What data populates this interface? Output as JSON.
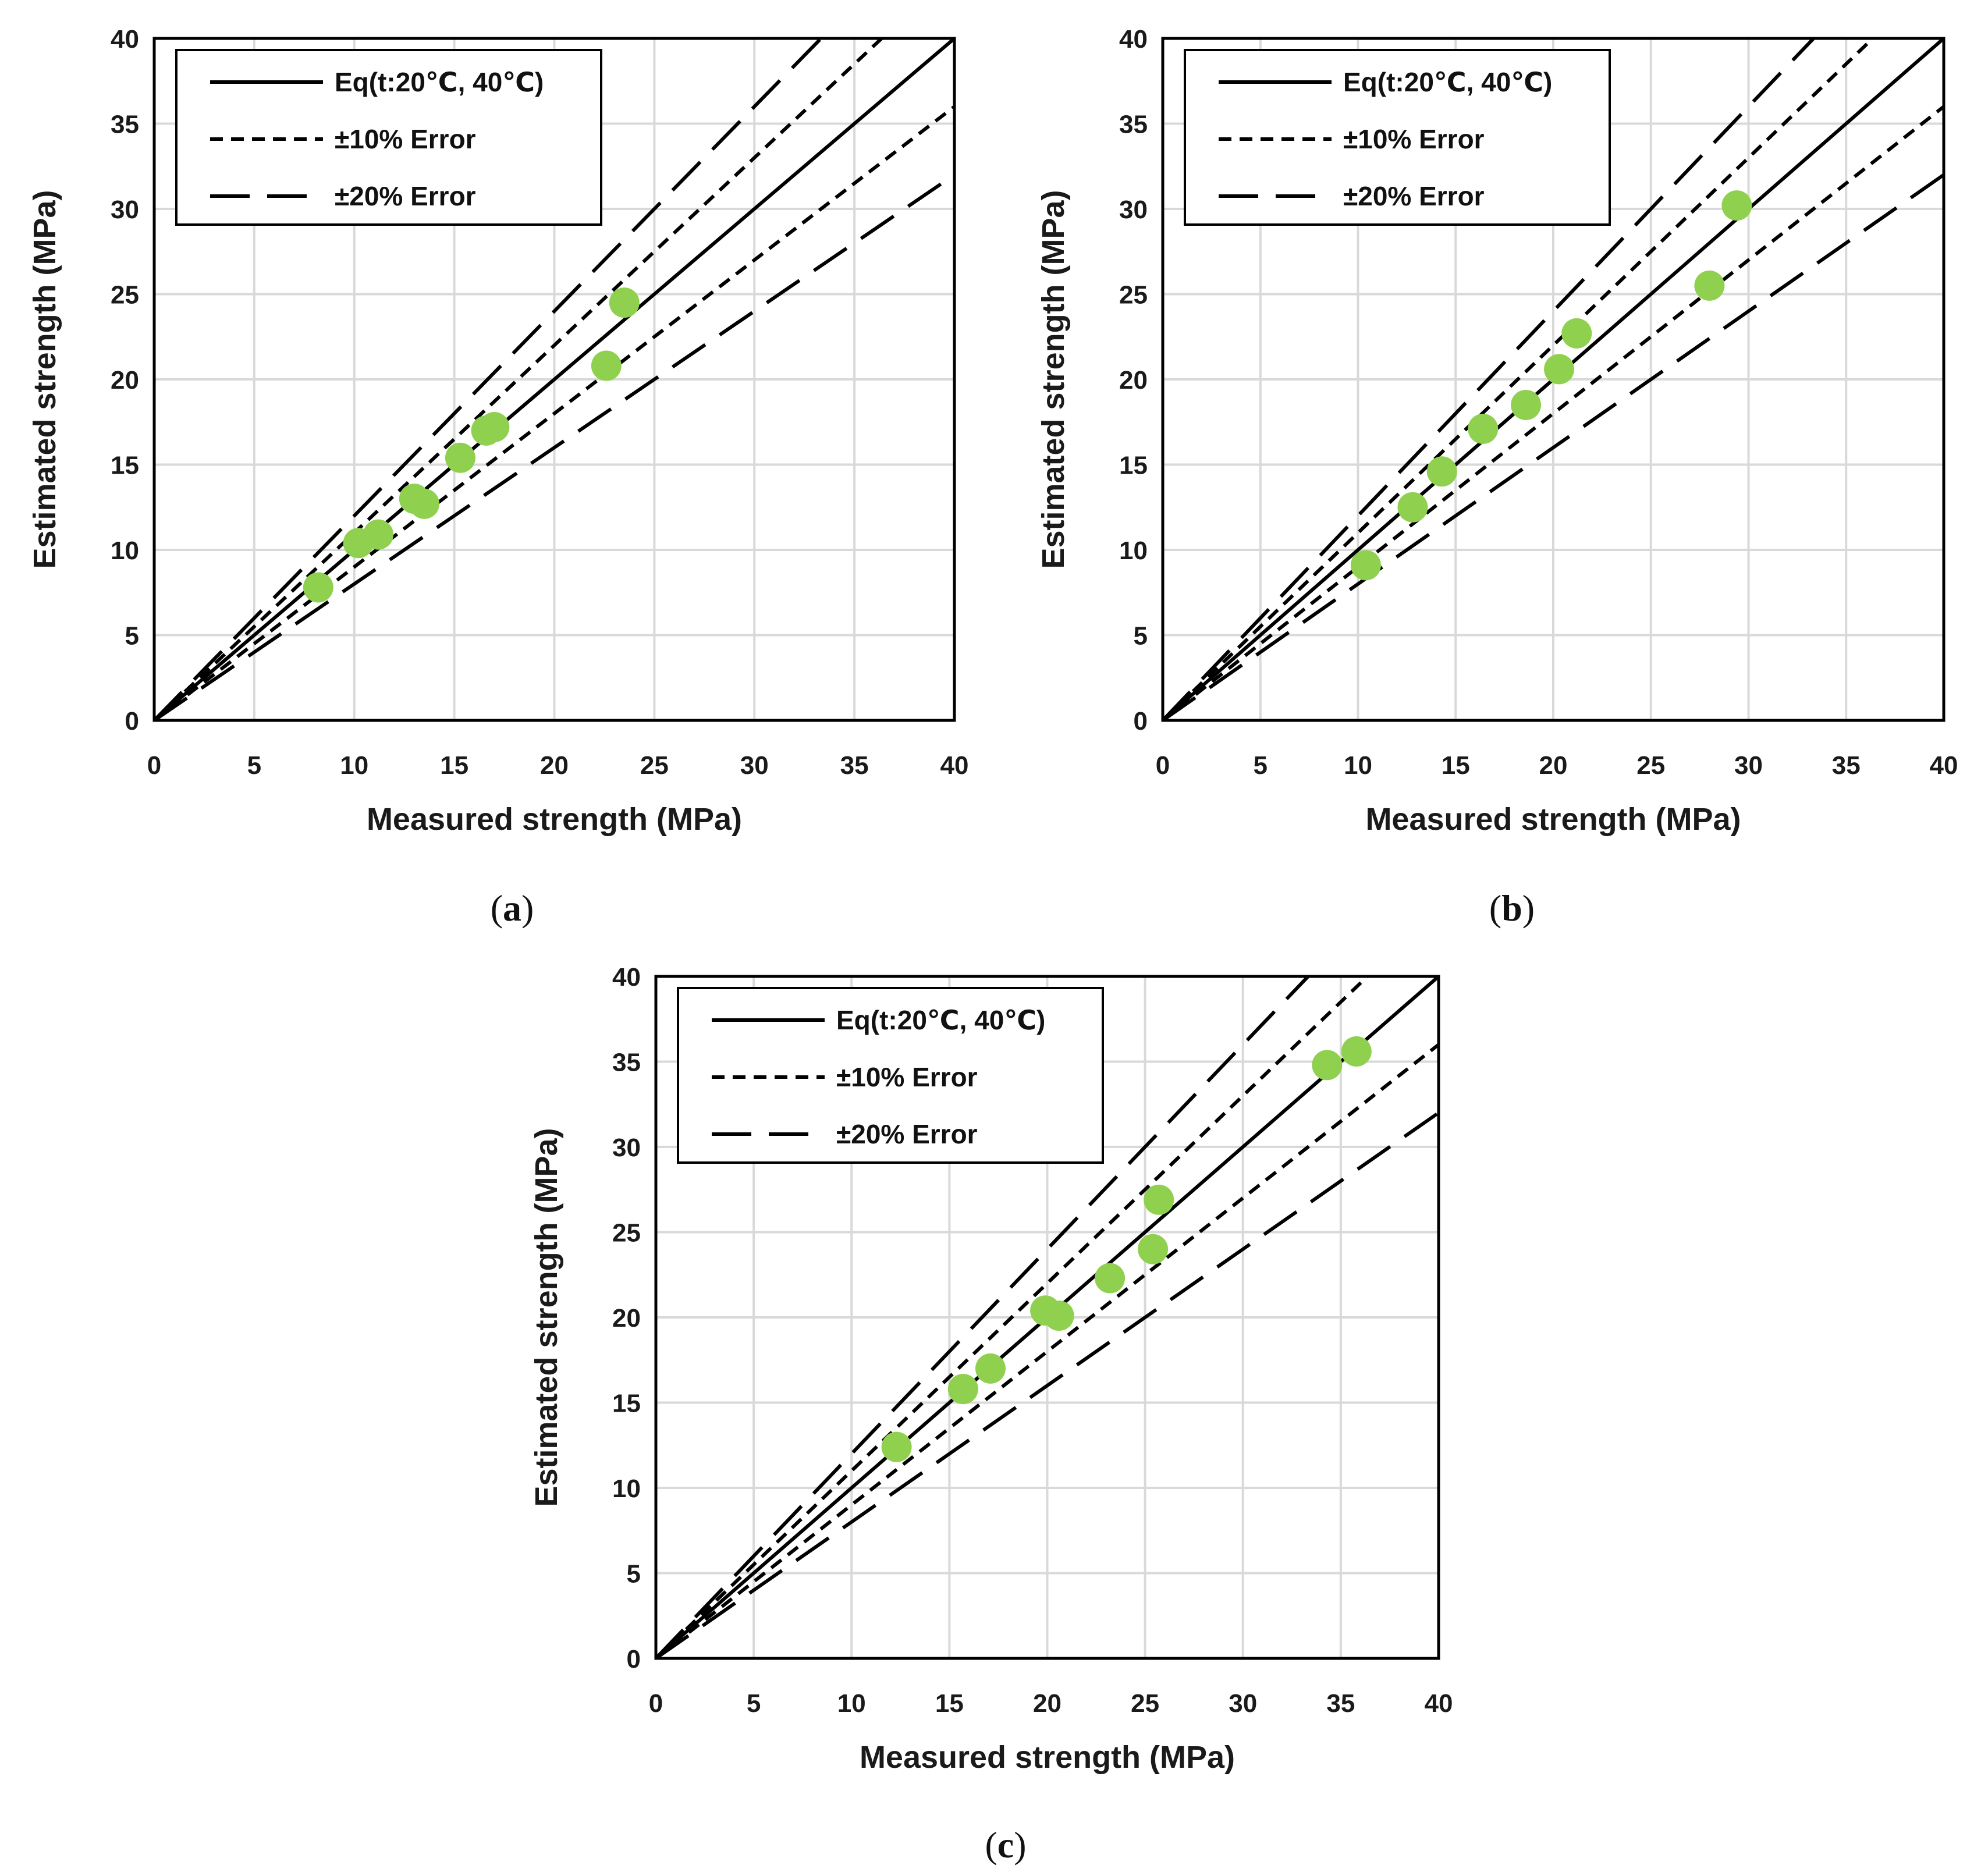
{
  "figure": {
    "colors": {
      "marker": "#8fd14f",
      "line": "#000000",
      "grid": "#d9d9d9",
      "frame": "#000000",
      "text": "#1a1a1a"
    }
  },
  "chart_data": [
    {
      "type": "scatter",
      "panel_label": "a",
      "caption_open": "(",
      "caption_close": ")",
      "xlabel": "Measured strength (MPa)",
      "ylabel": "Estimated strength (MPa)",
      "xlim": [
        0,
        40
      ],
      "ylim": [
        0,
        40
      ],
      "xticks": [
        "0",
        "5",
        "10",
        "15",
        "20",
        "25",
        "30",
        "35",
        "40"
      ],
      "yticks": [
        "0",
        "5",
        "10",
        "15",
        "20",
        "25",
        "30",
        "35",
        "40"
      ],
      "grid": true,
      "legend_position": "top-left",
      "legend": [
        {
          "label": "Eq(t:20℃, 40℃)",
          "style": "solid"
        },
        {
          "label": "±10% Error",
          "style": "short-dash"
        },
        {
          "label": "±20% Error",
          "style": "long-dash"
        }
      ],
      "reference_lines": [
        {
          "name": "Eq(t:20℃, 40℃)",
          "slope": 1.0,
          "style": "solid"
        },
        {
          "name": "+10% Error",
          "slope": 1.1,
          "style": "short-dash"
        },
        {
          "name": "-10% Error",
          "slope": 0.9,
          "style": "short-dash"
        },
        {
          "name": "+20% Error",
          "slope": 1.2,
          "style": "long-dash"
        },
        {
          "name": "-20% Error",
          "slope": 0.8,
          "style": "long-dash"
        }
      ],
      "points": [
        {
          "x": 8.2,
          "y": 7.8
        },
        {
          "x": 10.2,
          "y": 10.4
        },
        {
          "x": 11.2,
          "y": 10.9
        },
        {
          "x": 13.0,
          "y": 13.0
        },
        {
          "x": 13.5,
          "y": 12.7
        },
        {
          "x": 15.3,
          "y": 15.4
        },
        {
          "x": 16.6,
          "y": 17.0
        },
        {
          "x": 17.0,
          "y": 17.2
        },
        {
          "x": 22.6,
          "y": 20.8
        },
        {
          "x": 23.5,
          "y": 24.5
        }
      ]
    },
    {
      "type": "scatter",
      "panel_label": "b",
      "caption_open": "(",
      "caption_close": ")",
      "xlabel": "Measured strength (MPa)",
      "ylabel": "Estimated strength (MPa)",
      "xlim": [
        0,
        40
      ],
      "ylim": [
        0,
        40
      ],
      "xticks": [
        "0",
        "5",
        "10",
        "15",
        "20",
        "25",
        "30",
        "35",
        "40"
      ],
      "yticks": [
        "0",
        "5",
        "10",
        "15",
        "20",
        "25",
        "30",
        "35",
        "40"
      ],
      "grid": true,
      "legend_position": "top-left",
      "legend": [
        {
          "label": "Eq(t:20℃, 40℃)",
          "style": "solid"
        },
        {
          "label": "±10% Error",
          "style": "short-dash"
        },
        {
          "label": "±20% Error",
          "style": "long-dash"
        }
      ],
      "reference_lines": [
        {
          "name": "Eq(t:20℃, 40℃)",
          "slope": 1.0,
          "style": "solid"
        },
        {
          "name": "+10% Error",
          "slope": 1.1,
          "style": "short-dash"
        },
        {
          "name": "-10% Error",
          "slope": 0.9,
          "style": "short-dash"
        },
        {
          "name": "+20% Error",
          "slope": 1.2,
          "style": "long-dash"
        },
        {
          "name": "-20% Error",
          "slope": 0.8,
          "style": "long-dash"
        }
      ],
      "points": [
        {
          "x": 10.4,
          "y": 9.1
        },
        {
          "x": 12.8,
          "y": 12.5
        },
        {
          "x": 14.3,
          "y": 14.6
        },
        {
          "x": 16.4,
          "y": 17.1
        },
        {
          "x": 18.6,
          "y": 18.5
        },
        {
          "x": 20.3,
          "y": 20.6
        },
        {
          "x": 21.2,
          "y": 22.7
        },
        {
          "x": 28.0,
          "y": 25.5
        },
        {
          "x": 29.4,
          "y": 30.2
        }
      ]
    },
    {
      "type": "scatter",
      "panel_label": "c",
      "caption_open": "(",
      "caption_close": ")",
      "xlabel": "Measured strength (MPa)",
      "ylabel": "Estimated strength (MPa)",
      "xlim": [
        0,
        40
      ],
      "ylim": [
        0,
        40
      ],
      "xticks": [
        "0",
        "5",
        "10",
        "15",
        "20",
        "25",
        "30",
        "35",
        "40"
      ],
      "yticks": [
        "0",
        "5",
        "10",
        "15",
        "20",
        "25",
        "30",
        "35",
        "40"
      ],
      "grid": true,
      "legend_position": "top-left",
      "legend": [
        {
          "label": "Eq(t:20℃, 40℃)",
          "style": "solid"
        },
        {
          "label": "±10% Error",
          "style": "short-dash"
        },
        {
          "label": "±20% Error",
          "style": "long-dash"
        }
      ],
      "reference_lines": [
        {
          "name": "Eq(t:20℃, 40℃)",
          "slope": 1.0,
          "style": "solid"
        },
        {
          "name": "+10% Error",
          "slope": 1.1,
          "style": "short-dash"
        },
        {
          "name": "-10% Error",
          "slope": 0.9,
          "style": "short-dash"
        },
        {
          "name": "+20% Error",
          "slope": 1.2,
          "style": "long-dash"
        },
        {
          "name": "-20% Error",
          "slope": 0.8,
          "style": "long-dash"
        }
      ],
      "points": [
        {
          "x": 12.3,
          "y": 12.4
        },
        {
          "x": 15.7,
          "y": 15.8
        },
        {
          "x": 17.1,
          "y": 17.0
        },
        {
          "x": 19.9,
          "y": 20.4
        },
        {
          "x": 20.6,
          "y": 20.1
        },
        {
          "x": 23.2,
          "y": 22.3
        },
        {
          "x": 25.4,
          "y": 24.0
        },
        {
          "x": 25.7,
          "y": 26.9
        },
        {
          "x": 34.3,
          "y": 34.8
        },
        {
          "x": 35.8,
          "y": 35.6
        }
      ]
    }
  ]
}
